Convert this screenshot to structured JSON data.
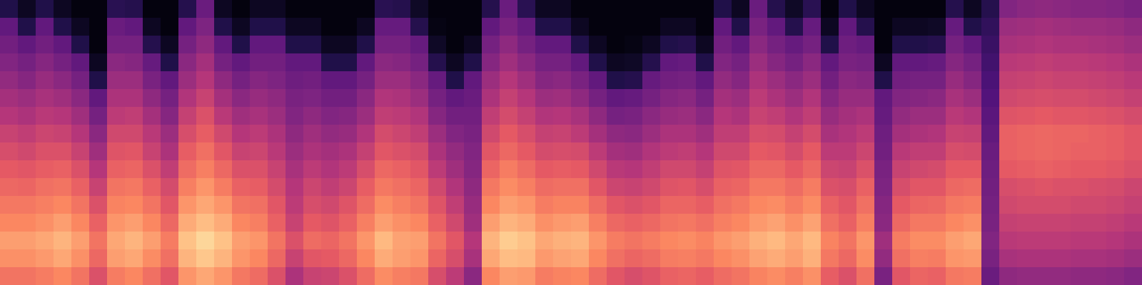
{
  "chart_data": {
    "type": "heatmap",
    "tick_labels": false,
    "color_range": [
      0,
      100
    ],
    "cells": [
      [
        14,
        30,
        34,
        38,
        42,
        46,
        50,
        55,
        59,
        63,
        67,
        71,
        75,
        80,
        77,
        70
      ],
      [
        6,
        14,
        30,
        35,
        39,
        44,
        48,
        53,
        57,
        62,
        66,
        71,
        75,
        80,
        77,
        70
      ],
      [
        14,
        30,
        34,
        39,
        43,
        47,
        51,
        56,
        60,
        64,
        69,
        73,
        77,
        82,
        79,
        72
      ],
      [
        6,
        14,
        30,
        35,
        40,
        45,
        50,
        55,
        60,
        65,
        70,
        75,
        80,
        85,
        82,
        75
      ],
      [
        2,
        6,
        14,
        30,
        35,
        40,
        45,
        50,
        55,
        60,
        65,
        70,
        75,
        80,
        77,
        70
      ],
      [
        2,
        2,
        2,
        6,
        14,
        30,
        35,
        40,
        45,
        50,
        55,
        60,
        65,
        70,
        67,
        60
      ],
      [
        16,
        32,
        35,
        40,
        44,
        48,
        52,
        57,
        61,
        65,
        70,
        74,
        78,
        82,
        80,
        72
      ],
      [
        15,
        30,
        35,
        39,
        44,
        48,
        53,
        57,
        62,
        66,
        71,
        75,
        80,
        85,
        82,
        75
      ],
      [
        2,
        6,
        15,
        31,
        36,
        41,
        46,
        51,
        55,
        60,
        65,
        70,
        75,
        80,
        76,
        69
      ],
      [
        2,
        2,
        6,
        14,
        30,
        35,
        39,
        44,
        48,
        53,
        58,
        62,
        67,
        72,
        69,
        62
      ],
      [
        15,
        30,
        35,
        40,
        44,
        49,
        54,
        59,
        64,
        68,
        73,
        78,
        83,
        88,
        85,
        78
      ],
      [
        32,
        37,
        41,
        46,
        50,
        55,
        60,
        64,
        69,
        73,
        78,
        82,
        87,
        92,
        89,
        82
      ],
      [
        6,
        14,
        30,
        35,
        41,
        46,
        51,
        57,
        62,
        67,
        72,
        78,
        83,
        88,
        85,
        78
      ],
      [
        2,
        6,
        14,
        30,
        35,
        40,
        45,
        50,
        55,
        60,
        65,
        70,
        75,
        80,
        78,
        71
      ],
      [
        6,
        14,
        30,
        34,
        39,
        43,
        47,
        52,
        56,
        60,
        64,
        69,
        73,
        78,
        75,
        68
      ],
      [
        6,
        14,
        30,
        34,
        37,
        41,
        44,
        48,
        51,
        55,
        58,
        62,
        65,
        70,
        67,
        60
      ],
      [
        2,
        6,
        14,
        30,
        33,
        36,
        38,
        41,
        44,
        47,
        50,
        52,
        55,
        60,
        55,
        48
      ],
      [
        2,
        6,
        14,
        30,
        34,
        37,
        41,
        45,
        48,
        52,
        56,
        59,
        63,
        68,
        62,
        55
      ],
      [
        2,
        2,
        6,
        14,
        30,
        34,
        38,
        42,
        46,
        49,
        53,
        57,
        61,
        66,
        63,
        56
      ],
      [
        2,
        2,
        6,
        14,
        30,
        34,
        39,
        43,
        48,
        52,
        56,
        61,
        65,
        70,
        67,
        60
      ],
      [
        2,
        6,
        14,
        30,
        35,
        40,
        44,
        49,
        54,
        59,
        64,
        68,
        73,
        78,
        75,
        68
      ],
      [
        16,
        31,
        35,
        40,
        44,
        49,
        53,
        58,
        62,
        67,
        71,
        76,
        80,
        86,
        83,
        76
      ],
      [
        15,
        31,
        35,
        39,
        44,
        48,
        52,
        56,
        60,
        65,
        69,
        73,
        77,
        81,
        80,
        73
      ],
      [
        7,
        15,
        31,
        35,
        40,
        44,
        49,
        53,
        58,
        62,
        66,
        70,
        75,
        80,
        78,
        71
      ],
      [
        2,
        3,
        7,
        15,
        31,
        35,
        39,
        44,
        48,
        52,
        57,
        61,
        65,
        70,
        66,
        59
      ],
      [
        2,
        2,
        2,
        6,
        14,
        30,
        34,
        38,
        42,
        45,
        49,
        53,
        57,
        62,
        59,
        52
      ],
      [
        2,
        2,
        6,
        14,
        30,
        32,
        34,
        36,
        38,
        39,
        41,
        43,
        45,
        50,
        47,
        40
      ],
      [
        15,
        30,
        35,
        39,
        44,
        48,
        53,
        57,
        62,
        66,
        71,
        75,
        80,
        85,
        82,
        75
      ],
      [
        32,
        36,
        41,
        45,
        50,
        54,
        58,
        63,
        67,
        72,
        76,
        80,
        85,
        90,
        87,
        80
      ],
      [
        16,
        31,
        35,
        40,
        45,
        50,
        54,
        59,
        63,
        68,
        73,
        78,
        83,
        88,
        86,
        79
      ],
      [
        6,
        14,
        30,
        35,
        39,
        44,
        49,
        54,
        58,
        63,
        68,
        72,
        77,
        82,
        79,
        72
      ],
      [
        6,
        14,
        30,
        35,
        40,
        45,
        50,
        55,
        59,
        64,
        69,
        74,
        79,
        84,
        81,
        74
      ],
      [
        2,
        6,
        14,
        30,
        36,
        41,
        47,
        52,
        58,
        63,
        69,
        74,
        80,
        85,
        82,
        75
      ],
      [
        2,
        2,
        6,
        14,
        30,
        35,
        41,
        46,
        52,
        57,
        62,
        68,
        73,
        78,
        75,
        68
      ],
      [
        2,
        2,
        2,
        6,
        14,
        30,
        35,
        41,
        46,
        51,
        56,
        62,
        67,
        72,
        69,
        62
      ],
      [
        2,
        2,
        3,
        7,
        15,
        31,
        36,
        40,
        45,
        50,
        55,
        60,
        65,
        70,
        66,
        59
      ],
      [
        2,
        2,
        6,
        15,
        31,
        35,
        40,
        44,
        49,
        53,
        57,
        62,
        67,
        72,
        68,
        61
      ],
      [
        2,
        6,
        14,
        30,
        34,
        39,
        43,
        48,
        52,
        57,
        61,
        66,
        70,
        75,
        72,
        65
      ],
      [
        2,
        6,
        15,
        31,
        35,
        40,
        44,
        48,
        53,
        57,
        62,
        66,
        71,
        76,
        73,
        66
      ],
      [
        2,
        2,
        6,
        14,
        30,
        35,
        40,
        45,
        50,
        54,
        59,
        64,
        69,
        74,
        71,
        64
      ],
      [
        14,
        30,
        34,
        38,
        42,
        46,
        50,
        53,
        57,
        61,
        65,
        69,
        73,
        78,
        75,
        68
      ],
      [
        6,
        14,
        30,
        35,
        39,
        44,
        48,
        53,
        57,
        62,
        66,
        71,
        75,
        80,
        77,
        70
      ],
      [
        32,
        36,
        40,
        44,
        48,
        52,
        55,
        59,
        63,
        67,
        71,
        75,
        79,
        84,
        81,
        74
      ],
      [
        15,
        30,
        35,
        39,
        44,
        48,
        53,
        58,
        62,
        67,
        71,
        76,
        81,
        86,
        83,
        76
      ],
      [
        7,
        15,
        31,
        35,
        40,
        44,
        49,
        54,
        58,
        63,
        68,
        72,
        77,
        82,
        80,
        73
      ],
      [
        16,
        31,
        35,
        40,
        44,
        49,
        53,
        58,
        63,
        67,
        72,
        76,
        81,
        86,
        84,
        77
      ],
      [
        2,
        6,
        14,
        30,
        34,
        39,
        43,
        47,
        52,
        56,
        60,
        65,
        69,
        74,
        71,
        64
      ],
      [
        14,
        30,
        33,
        36,
        40,
        43,
        46,
        49,
        52,
        55,
        59,
        62,
        65,
        70,
        67,
        60
      ],
      [
        6,
        15,
        31,
        35,
        39,
        43,
        48,
        52,
        56,
        60,
        65,
        69,
        73,
        78,
        76,
        69
      ],
      [
        2,
        2,
        2,
        6,
        14,
        30,
        31,
        33,
        34,
        36,
        37,
        39,
        40,
        45,
        42,
        36
      ],
      [
        2,
        6,
        14,
        30,
        34,
        38,
        42,
        46,
        51,
        55,
        59,
        63,
        67,
        72,
        69,
        62
      ],
      [
        2,
        6,
        14,
        30,
        35,
        39,
        44,
        48,
        53,
        57,
        62,
        66,
        71,
        76,
        73,
        66
      ],
      [
        2,
        7,
        15,
        31,
        35,
        40,
        44,
        49,
        53,
        58,
        62,
        67,
        71,
        76,
        72,
        65
      ],
      [
        15,
        31,
        35,
        39,
        43,
        47,
        51,
        55,
        59,
        63,
        67,
        71,
        75,
        80,
        78,
        71
      ],
      [
        6,
        14,
        30,
        35,
        39,
        44,
        49,
        54,
        58,
        63,
        68,
        72,
        77,
        82,
        79,
        72
      ],
      [
        15,
        18,
        20,
        22,
        24,
        26,
        28,
        30,
        32,
        33,
        34,
        35,
        36,
        38,
        36,
        32
      ],
      [
        38,
        44,
        47,
        51,
        54,
        57,
        61,
        65,
        65,
        63,
        59,
        57,
        54,
        51,
        47,
        41
      ],
      [
        40,
        45,
        48,
        52,
        55,
        58,
        62,
        66,
        66,
        64,
        60,
        58,
        55,
        52,
        48,
        42
      ],
      [
        41,
        46,
        49,
        53,
        56,
        59,
        63,
        67,
        67,
        65,
        61,
        58,
        55,
        52,
        48,
        42
      ],
      [
        40,
        45,
        48,
        52,
        55,
        58,
        62,
        66,
        66,
        64,
        60,
        58,
        55,
        52,
        48,
        42
      ],
      [
        39,
        44,
        48,
        52,
        55,
        58,
        62,
        66,
        65,
        63,
        60,
        57,
        54,
        51,
        47,
        41
      ],
      [
        39,
        44,
        47,
        51,
        54,
        57,
        61,
        65,
        65,
        63,
        59,
        57,
        54,
        51,
        47,
        41
      ],
      [
        38,
        43,
        46,
        50,
        53,
        56,
        60,
        64,
        64,
        62,
        58,
        56,
        53,
        50,
        46,
        40
      ],
      [
        36,
        41,
        44,
        48,
        51,
        54,
        58,
        62,
        62,
        60,
        56,
        54,
        51,
        48,
        44,
        38
      ]
    ]
  }
}
